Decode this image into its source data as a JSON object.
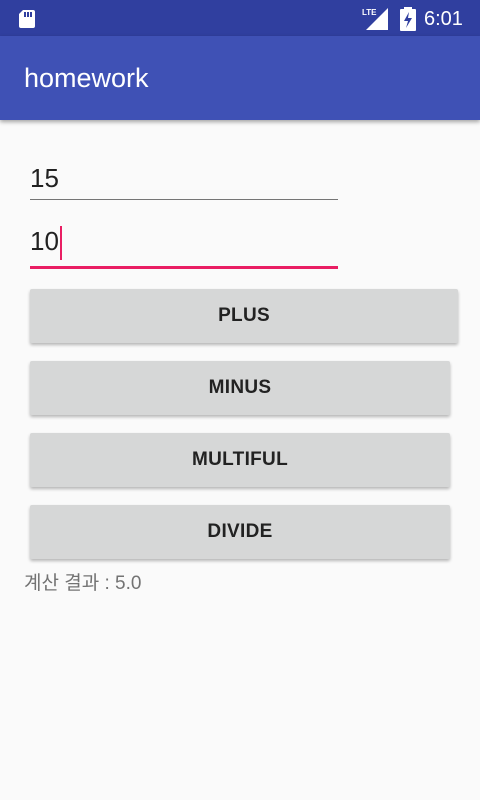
{
  "status_bar": {
    "time": "6:01",
    "network_label": "LTE",
    "icons": [
      "sd-card-icon",
      "lte-signal-icon",
      "battery-charging-icon"
    ]
  },
  "app_bar": {
    "title": "homework",
    "color": "#3f51b5",
    "status_color": "#303f9f"
  },
  "inputs": {
    "first_value": "15",
    "second_value": "10",
    "accent_color": "#e91e63"
  },
  "buttons": {
    "plus": "PLUS",
    "minus": "MINUS",
    "multiply": "MULTIFUL",
    "divide": "DIVIDE"
  },
  "result": {
    "text": "계산 결과 : 5.0"
  }
}
